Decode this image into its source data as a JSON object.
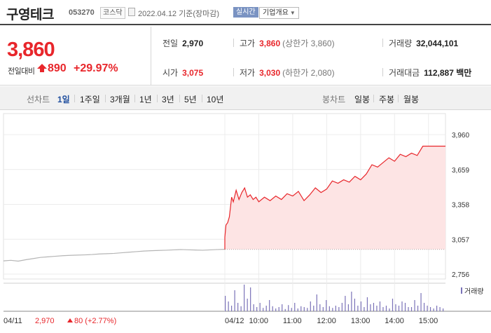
{
  "header": {
    "name": "구영테크",
    "code": "053270",
    "market": "코스닥",
    "date": "2022.04.12  기준(장마감)",
    "realtime_label": "실시간",
    "company_info_label": "기업개요"
  },
  "price": {
    "current": "3,860",
    "change_label": "전일대비",
    "change_value": "890",
    "change_pct": "+29.97%",
    "direction": "up"
  },
  "stats": {
    "prev_label": "전일",
    "prev_value": "2,970",
    "high_label": "고가",
    "high_value": "3,860",
    "high_sub": "(상한가 3,860)",
    "volume_label": "거래량",
    "volume_value": "32,044,101",
    "open_label": "시가",
    "open_value": "3,075",
    "low_label": "저가",
    "low_value": "3,030",
    "low_sub": "(하한가 2,080)",
    "amount_label": "거래대금",
    "amount_value": "112,887 백만"
  },
  "tabs": {
    "line_label": "선차트",
    "line_items": [
      "1일",
      "1주일",
      "3개월",
      "1년",
      "3년",
      "5년",
      "10년"
    ],
    "active": "1일",
    "candle_label": "봉차트",
    "candle_items": [
      "일봉",
      "주봉",
      "월봉"
    ]
  },
  "colors": {
    "up": "#e8262b",
    "accent": "#1f4e9e",
    "fill": "#fde4e4",
    "volume": "#7a72b8",
    "prev_day": "#b5b5b5"
  },
  "chart_data": {
    "type": "area",
    "y_ticks": [
      "3,960",
      "3,659",
      "3,358",
      "3,057",
      "2,756"
    ],
    "ylim": [
      2756,
      3960
    ],
    "x_ticks": [
      "04/12",
      "10:00",
      "11:00",
      "12:00",
      "13:00",
      "14:00",
      "15:00"
    ],
    "prev_day_label": "04/11",
    "prev_day_close": "2,970",
    "prev_day_change": "80 (+2.77%)",
    "volume_legend": "거래량",
    "prev_day_series": [
      2870,
      2875,
      2868,
      2880,
      2890,
      2900,
      2905,
      2910,
      2915,
      2918,
      2920,
      2922,
      2925,
      2930,
      2932,
      2935,
      2940,
      2945,
      2950,
      2955,
      2958,
      2960,
      2962,
      2965,
      2968,
      2966,
      2964,
      2962,
      2965,
      2968,
      2970
    ],
    "today_series": [
      [
        "09:00",
        3075
      ],
      [
        "09:02",
        3180
      ],
      [
        "09:05",
        3200
      ],
      [
        "09:08",
        3250
      ],
      [
        "09:12",
        3420
      ],
      [
        "09:15",
        3380
      ],
      [
        "09:20",
        3480
      ],
      [
        "09:25",
        3400
      ],
      [
        "09:30",
        3460
      ],
      [
        "09:35",
        3500
      ],
      [
        "09:40",
        3420
      ],
      [
        "09:45",
        3440
      ],
      [
        "09:50",
        3400
      ],
      [
        "09:55",
        3420
      ],
      [
        "10:00",
        3380
      ],
      [
        "10:10",
        3420
      ],
      [
        "10:20",
        3390
      ],
      [
        "10:30",
        3430
      ],
      [
        "10:40",
        3400
      ],
      [
        "10:50",
        3450
      ],
      [
        "11:00",
        3430
      ],
      [
        "11:10",
        3470
      ],
      [
        "11:20",
        3390
      ],
      [
        "11:30",
        3440
      ],
      [
        "11:40",
        3500
      ],
      [
        "11:50",
        3460
      ],
      [
        "12:00",
        3490
      ],
      [
        "12:10",
        3560
      ],
      [
        "12:20",
        3540
      ],
      [
        "12:30",
        3570
      ],
      [
        "12:40",
        3550
      ],
      [
        "12:50",
        3600
      ],
      [
        "13:00",
        3570
      ],
      [
        "13:10",
        3620
      ],
      [
        "13:20",
        3700
      ],
      [
        "13:30",
        3680
      ],
      [
        "13:40",
        3720
      ],
      [
        "13:50",
        3760
      ],
      [
        "14:00",
        3730
      ],
      [
        "14:10",
        3790
      ],
      [
        "14:20",
        3770
      ],
      [
        "14:30",
        3800
      ],
      [
        "14:40",
        3780
      ],
      [
        "14:50",
        3860
      ],
      [
        "15:00",
        3860
      ],
      [
        "15:10",
        3860
      ],
      [
        "15:20",
        3860
      ],
      [
        "15:30",
        3860
      ]
    ],
    "volume_series": [
      0.55,
      0.35,
      0.2,
      0.75,
      0.3,
      0.18,
      0.95,
      0.45,
      0.85,
      0.25,
      0.15,
      0.3,
      0.12,
      0.2,
      0.4,
      0.18,
      0.1,
      0.15,
      0.25,
      0.08,
      0.22,
      0.12,
      0.3,
      0.1,
      0.18,
      0.15,
      0.12,
      0.35,
      0.2,
      0.6,
      0.25,
      0.15,
      0.4,
      0.18,
      0.12,
      0.2,
      0.15,
      0.3,
      0.55,
      0.25,
      0.7,
      0.45,
      0.2,
      0.35,
      0.15,
      0.5,
      0.25,
      0.3,
      0.2,
      0.35,
      0.15,
      0.2,
      0.1,
      0.45,
      0.25,
      0.2,
      0.35,
      0.3,
      0.15,
      0.15,
      0.4,
      0.2,
      0.65,
      0.3,
      0.2,
      0.15,
      0.1,
      0.2,
      0.15,
      0.1
    ],
    "grid": true
  }
}
